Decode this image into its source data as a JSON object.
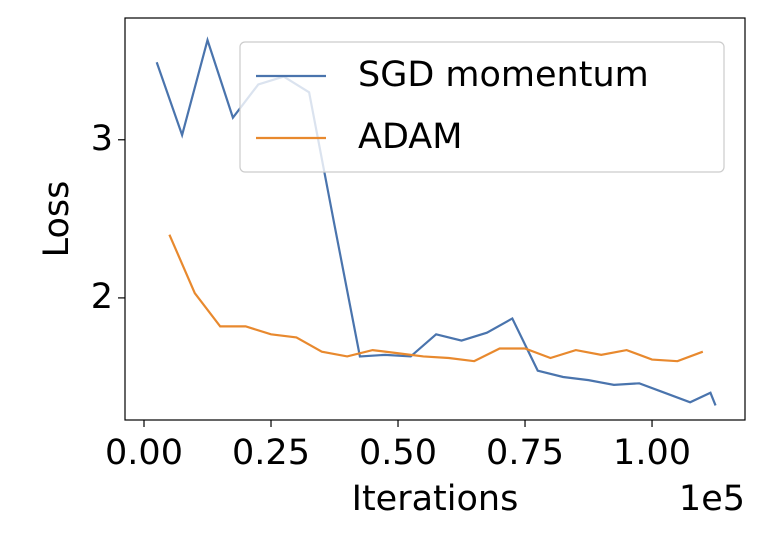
{
  "chart_data": {
    "type": "line",
    "x_label": "Iterations",
    "y_label": "Loss",
    "x_offset_label": "1e5",
    "xlim": [
      -0.0374,
      1.183
    ],
    "ylim": [
      1.228,
      3.77
    ],
    "xticks": [
      {
        "value": 0,
        "label": "0.00"
      },
      {
        "value": 0.25,
        "label": "0.25"
      },
      {
        "value": 0.5,
        "label": "0.50"
      },
      {
        "value": 0.75,
        "label": "0.75"
      },
      {
        "value": 1,
        "label": "1.00"
      }
    ],
    "yticks": [
      2,
      3
    ],
    "legend": "upper right",
    "series": [
      {
        "name": "SGD momentum",
        "color": "#4a74ad",
        "x": [
          0.025,
          0.075,
          0.125,
          0.175,
          0.225,
          0.275,
          0.325,
          0.375,
          0.425,
          0.475,
          0.525,
          0.575,
          0.625,
          0.675,
          0.725,
          0.775,
          0.825,
          0.875,
          0.925,
          0.975,
          1.025,
          1.075,
          1.115,
          1.125
        ],
        "values": [
          3.49,
          3.03,
          3.63,
          3.14,
          3.35,
          3.4,
          3.3,
          2.46,
          1.63,
          1.64,
          1.63,
          1.77,
          1.73,
          1.78,
          1.87,
          1.54,
          1.5,
          1.48,
          1.45,
          1.46,
          1.4,
          1.34,
          1.4,
          1.32
        ]
      },
      {
        "name": "ADAM",
        "color": "#e8892e",
        "x": [
          0.05,
          0.1,
          0.15,
          0.2,
          0.25,
          0.3,
          0.35,
          0.4,
          0.45,
          0.5,
          0.55,
          0.6,
          0.65,
          0.7,
          0.75,
          0.8,
          0.85,
          0.9,
          0.95,
          1.0,
          1.05,
          1.1
        ],
        "values": [
          2.4,
          2.03,
          1.82,
          1.82,
          1.77,
          1.75,
          1.66,
          1.63,
          1.67,
          1.65,
          1.63,
          1.62,
          1.6,
          1.68,
          1.68,
          1.62,
          1.67,
          1.64,
          1.67,
          1.61,
          1.6,
          1.66
        ]
      }
    ]
  }
}
